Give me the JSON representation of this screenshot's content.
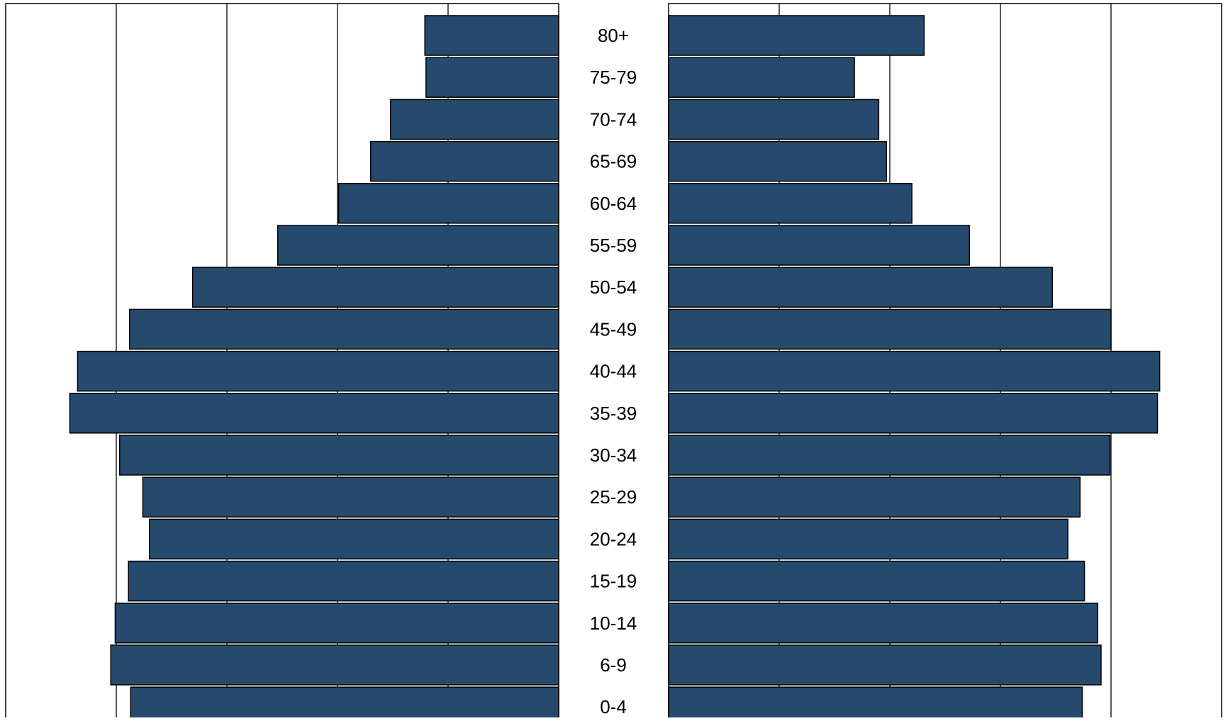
{
  "chart_data": {
    "type": "bar",
    "subtype": "population-pyramid",
    "categories": [
      "80+",
      "75-79",
      "70-74",
      "65-69",
      "60-64",
      "55-59",
      "50-54",
      "45-49",
      "40-44",
      "35-39",
      "30-34",
      "25-29",
      "20-24",
      "15-19",
      "10-14",
      "6-9",
      "0-4"
    ],
    "series": [
      {
        "side": "left",
        "values": [
          1.21,
          1.2,
          1.52,
          1.7,
          1.99,
          2.54,
          3.31,
          3.88,
          4.35,
          4.42,
          3.97,
          3.76,
          3.7,
          3.89,
          4.01,
          4.05,
          3.87
        ]
      },
      {
        "side": "right",
        "values": [
          2.31,
          1.68,
          1.9,
          1.97,
          2.2,
          2.72,
          3.47,
          4.0,
          4.44,
          4.42,
          3.99,
          3.72,
          3.61,
          3.76,
          3.88,
          3.91,
          3.74
        ]
      }
    ],
    "xlim": [
      0,
      5
    ],
    "gridlines": [
      1,
      2,
      3,
      4
    ],
    "grid": true,
    "title": "",
    "xlabel": "",
    "ylabel": "",
    "bar_color": "#254a6e",
    "bar_edge_color": "#000000",
    "grid_color": "#000000"
  }
}
